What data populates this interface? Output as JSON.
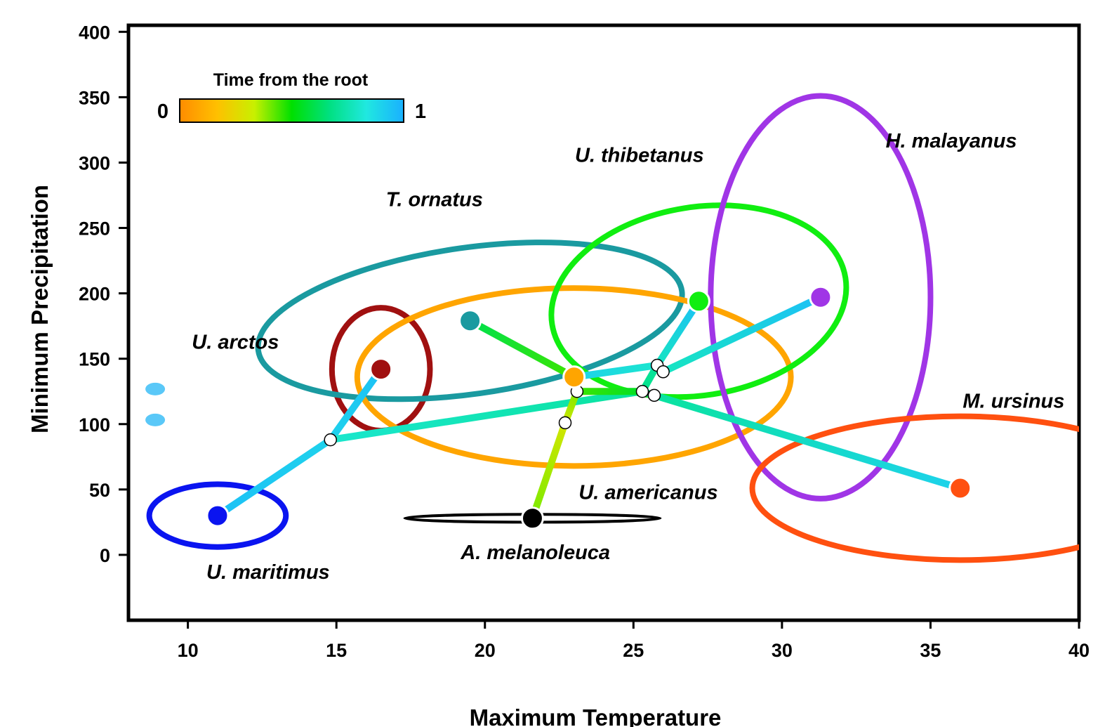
{
  "chart_data": {
    "type": "scatter",
    "xlabel": "Maximum Temperature",
    "ylabel": "Minimum Precipitation",
    "xlim": [
      8,
      40
    ],
    "ylim": [
      -50,
      405
    ],
    "xticks": [
      10,
      15,
      20,
      25,
      30,
      35,
      40
    ],
    "yticks": [
      0,
      50,
      100,
      150,
      200,
      250,
      300,
      350,
      400
    ],
    "grid": false,
    "colorbar": {
      "title": "Time from the root",
      "min_label": "0",
      "max_label": "1",
      "colors": [
        "#ff8c00",
        "#ffc000",
        "#c8f000",
        "#00e000",
        "#00e080",
        "#20e8e0",
        "#1ab0ff"
      ]
    },
    "species": [
      {
        "name": "U. maritimus",
        "x": 11.0,
        "y": 30,
        "color": "#0a14f0",
        "ellipse": {
          "rx": 2.3,
          "ry": 24,
          "angle": 0
        },
        "label_anchor": [
          12.7,
          -13
        ]
      },
      {
        "name": "U. arctos",
        "x": 16.5,
        "y": 142,
        "color": "#a01010",
        "ellipse": {
          "rx": 1.65,
          "ry": 47,
          "angle": 0
        },
        "label_anchor": [
          11.6,
          163
        ]
      },
      {
        "name": "T. ornatus",
        "x": 19.5,
        "y": 179,
        "color": "#1a9aa0",
        "ellipse": {
          "rx": 7.2,
          "ry": 56,
          "angle": -8
        },
        "label_anchor": [
          18.3,
          272
        ]
      },
      {
        "name": "U. americanus",
        "x": 23.0,
        "y": 136,
        "color": "#ffa500",
        "ellipse": {
          "rx": 7.3,
          "ry": 68,
          "angle": 0
        },
        "label_anchor": [
          25.5,
          48
        ]
      },
      {
        "name": "U. thibetanus",
        "x": 27.2,
        "y": 194,
        "color": "#10ee10",
        "ellipse": {
          "rx": 5.0,
          "ry": 72,
          "angle": -9
        },
        "label_anchor": [
          25.2,
          306
        ]
      },
      {
        "name": "H. malayanus",
        "x": 31.3,
        "y": 197,
        "color": "#a035e6",
        "ellipse": {
          "rx": 3.7,
          "ry": 154,
          "angle": 0
        },
        "label_anchor": [
          35.7,
          317
        ]
      },
      {
        "name": "M. ursinus",
        "x": 36.0,
        "y": 51,
        "color": "#ff5010",
        "ellipse": {
          "rx": 7.0,
          "ry": 55,
          "angle": 0
        },
        "label_anchor": [
          37.8,
          118
        ]
      },
      {
        "name": "A. melanoleuca",
        "x": 21.6,
        "y": 28,
        "color": "#000000",
        "ellipse": {
          "rx": 4.3,
          "ry": 3,
          "angle": 0
        },
        "label_anchor": [
          21.7,
          2
        ]
      }
    ],
    "nodes": [
      {
        "x": 14.8,
        "y": 88
      },
      {
        "x": 25.3,
        "y": 125
      },
      {
        "x": 25.7,
        "y": 122
      },
      {
        "x": 23.1,
        "y": 125
      },
      {
        "x": 22.7,
        "y": 101
      },
      {
        "x": 25.8,
        "y": 145
      },
      {
        "x": 26.0,
        "y": 140
      }
    ],
    "branches": [
      {
        "from": [
          11.0,
          30
        ],
        "to": [
          14.8,
          88
        ],
        "t": [
          0.95,
          0.9
        ]
      },
      {
        "from": [
          14.8,
          88
        ],
        "to": [
          16.5,
          142
        ],
        "t": [
          0.9,
          0.95
        ]
      },
      {
        "from": [
          14.8,
          88
        ],
        "to": [
          25.3,
          125
        ],
        "t": [
          0.8,
          0.72
        ]
      },
      {
        "from": [
          21.6,
          28
        ],
        "to": [
          22.7,
          101
        ],
        "t": [
          0.4,
          0.3
        ]
      },
      {
        "from": [
          22.7,
          101
        ],
        "to": [
          23.1,
          125
        ],
        "t": [
          0.3,
          0.4
        ]
      },
      {
        "from": [
          23.1,
          125
        ],
        "to": [
          25.3,
          125
        ],
        "t": [
          0.45,
          0.55
        ]
      },
      {
        "from": [
          25.3,
          125
        ],
        "to": [
          25.7,
          122
        ],
        "t": [
          0.65,
          0.68
        ]
      },
      {
        "from": [
          25.7,
          122
        ],
        "to": [
          36.0,
          51
        ],
        "t": [
          0.72,
          0.9
        ]
      },
      {
        "from": [
          25.3,
          125
        ],
        "to": [
          25.8,
          145
        ],
        "t": [
          0.68,
          0.72
        ]
      },
      {
        "from": [
          25.8,
          145
        ],
        "to": [
          27.2,
          194
        ],
        "t": [
          0.78,
          0.95
        ]
      },
      {
        "from": [
          25.8,
          145
        ],
        "to": [
          26.0,
          140
        ],
        "t": [
          0.75,
          0.78
        ]
      },
      {
        "from": [
          26.0,
          140
        ],
        "to": [
          31.3,
          197
        ],
        "t": [
          0.78,
          0.95
        ]
      },
      {
        "from": [
          25.8,
          145
        ],
        "to": [
          23.0,
          136
        ],
        "t": [
          0.8,
          0.9
        ]
      },
      {
        "from": [
          23.0,
          136
        ],
        "to": [
          19.5,
          179
        ],
        "t": [
          0.45,
          0.6
        ]
      }
    ],
    "clipped_marker": {
      "x": 8.9,
      "y": 115,
      "color": "#5ac8f8"
    }
  }
}
